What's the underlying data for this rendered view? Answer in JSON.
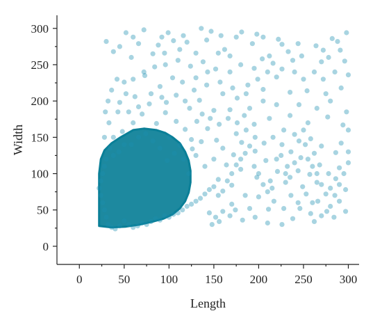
{
  "chart_data": {
    "type": "scatter",
    "title": "",
    "xlabel": "Length",
    "ylabel": "Width",
    "xlim": [
      -25,
      312
    ],
    "ylim": [
      -25,
      318
    ],
    "xticks": [
      0,
      50,
      100,
      150,
      200,
      250,
      300
    ],
    "yticks": [
      0,
      50,
      100,
      150,
      200,
      250,
      300
    ],
    "xtick_labels": [
      "0",
      "50",
      "100",
      "150",
      "200",
      "250",
      "300"
    ],
    "ytick_labels": [
      "0",
      "50",
      "100",
      "150",
      "200",
      "250",
      "300"
    ],
    "grid": false,
    "legend": "none",
    "marker_color": "#1a8fb0",
    "dense_cluster_color": "#0a7f97",
    "points": [
      [
        30,
        282
      ],
      [
        52,
        294
      ],
      [
        72,
        298
      ],
      [
        99,
        294
      ],
      [
        105,
        283
      ],
      [
        120,
        281
      ],
      [
        136,
        300
      ],
      [
        147,
        296
      ],
      [
        162,
        271
      ],
      [
        181,
        295
      ],
      [
        205,
        288
      ],
      [
        222,
        285
      ],
      [
        244,
        279
      ],
      [
        264,
        276
      ],
      [
        282,
        286
      ],
      [
        298,
        294
      ],
      [
        66,
        279
      ],
      [
        88,
        277
      ],
      [
        45,
        275
      ],
      [
        58,
        260
      ],
      [
        82,
        265
      ],
      [
        112,
        271
      ],
      [
        155,
        266
      ],
      [
        193,
        279
      ],
      [
        216,
        252
      ],
      [
        270,
        254
      ],
      [
        272,
        230
      ],
      [
        254,
        214
      ],
      [
        235,
        212
      ],
      [
        220,
        233
      ],
      [
        205,
        216
      ],
      [
        188,
        222
      ],
      [
        176,
        204
      ],
      [
        160,
        210
      ],
      [
        142,
        222
      ],
      [
        128,
        215
      ],
      [
        115,
        226
      ],
      [
        104,
        232
      ],
      [
        90,
        220
      ],
      [
        73,
        235
      ],
      [
        62,
        206
      ],
      [
        52,
        210
      ],
      [
        45,
        198
      ],
      [
        78,
        196
      ],
      [
        97,
        198
      ],
      [
        123,
        190
      ],
      [
        134,
        201
      ],
      [
        150,
        187
      ],
      [
        168,
        188
      ],
      [
        184,
        180
      ],
      [
        195,
        168
      ],
      [
        212,
        176
      ],
      [
        228,
        160
      ],
      [
        240,
        154
      ],
      [
        258,
        148
      ],
      [
        277,
        178
      ],
      [
        294,
        167
      ],
      [
        286,
        129
      ],
      [
        270,
        138
      ],
      [
        257,
        99
      ],
      [
        247,
        122
      ],
      [
        232,
        110
      ],
      [
        221,
        103
      ],
      [
        208,
        118
      ],
      [
        196,
        131
      ],
      [
        181,
        143
      ],
      [
        172,
        126
      ],
      [
        164,
        112
      ],
      [
        153,
        146
      ],
      [
        143,
        162
      ],
      [
        131,
        172
      ],
      [
        118,
        161
      ],
      [
        108,
        172
      ],
      [
        96,
        184
      ],
      [
        86,
        169
      ],
      [
        70,
        182
      ],
      [
        60,
        170
      ],
      [
        48,
        158
      ],
      [
        38,
        150
      ],
      [
        33,
        170
      ],
      [
        28,
        150
      ],
      [
        137,
        182
      ],
      [
        125,
        147
      ],
      [
        112,
        139
      ],
      [
        100,
        150
      ],
      [
        180,
        106
      ],
      [
        198,
        95
      ],
      [
        213,
        90
      ],
      [
        230,
        88
      ],
      [
        249,
        82
      ],
      [
        265,
        88
      ],
      [
        286,
        93
      ],
      [
        297,
        78
      ],
      [
        280,
        55
      ],
      [
        260,
        60
      ],
      [
        244,
        60
      ],
      [
        228,
        52
      ],
      [
        211,
        51
      ],
      [
        190,
        52
      ],
      [
        174,
        50
      ],
      [
        160,
        48
      ],
      [
        145,
        46
      ],
      [
        152,
        40
      ],
      [
        170,
        58
      ],
      [
        185,
        70
      ],
      [
        200,
        68
      ],
      [
        217,
        62
      ],
      [
        236,
        70
      ],
      [
        253,
        72
      ],
      [
        266,
        62
      ],
      [
        276,
        48
      ],
      [
        290,
        62
      ],
      [
        170,
        84
      ],
      [
        155,
        92
      ],
      [
        140,
        110
      ],
      [
        130,
        125
      ],
      [
        122,
        100
      ],
      [
        150,
        120
      ],
      [
        160,
        135
      ],
      [
        175,
        155
      ],
      [
        190,
        190
      ],
      [
        205,
        200
      ],
      [
        220,
        195
      ],
      [
        235,
        180
      ],
      [
        245,
        195
      ],
      [
        255,
        170
      ],
      [
        265,
        190
      ],
      [
        275,
        210
      ],
      [
        285,
        240
      ],
      [
        291,
        270
      ],
      [
        233,
        268
      ],
      [
        212,
        262
      ],
      [
        195,
        245
      ],
      [
        180,
        250
      ],
      [
        168,
        240
      ],
      [
        152,
        244
      ],
      [
        138,
        254
      ],
      [
        124,
        248
      ],
      [
        110,
        256
      ],
      [
        96,
        250
      ],
      [
        84,
        247
      ],
      [
        72,
        240
      ],
      [
        60,
        230
      ],
      [
        50,
        226
      ],
      [
        42,
        230
      ],
      [
        36,
        215
      ],
      [
        32,
        200
      ],
      [
        29,
        185
      ],
      [
        43,
        185
      ],
      [
        55,
        185
      ],
      [
        66,
        192
      ],
      [
        80,
        210
      ],
      [
        92,
        205
      ],
      [
        108,
        208
      ],
      [
        118,
        200
      ],
      [
        130,
        232
      ],
      [
        143,
        240
      ],
      [
        157,
        226
      ],
      [
        171,
        218
      ],
      [
        186,
        210
      ],
      [
        199,
        230
      ],
      [
        210,
        240
      ],
      [
        226,
        244
      ],
      [
        240,
        240
      ],
      [
        250,
        230
      ],
      [
        262,
        240
      ],
      [
        278,
        260
      ],
      [
        288,
        282
      ],
      [
        248,
        262
      ],
      [
        226,
        278
      ],
      [
        198,
        292
      ],
      [
        175,
        288
      ],
      [
        158,
        290
      ],
      [
        142,
        284
      ],
      [
        116,
        290
      ],
      [
        92,
        288
      ],
      [
        60,
        288
      ],
      [
        38,
        268
      ],
      [
        95,
        266
      ],
      [
        130,
        266
      ],
      [
        168,
        262
      ],
      [
        204,
        258
      ],
      [
        238,
        256
      ],
      [
        272,
        270
      ],
      [
        296,
        255
      ],
      [
        300,
        236
      ],
      [
        292,
        218
      ],
      [
        280,
        200
      ],
      [
        298,
        185
      ],
      [
        300,
        160
      ],
      [
        292,
        142
      ],
      [
        300,
        115
      ],
      [
        290,
        108
      ],
      [
        278,
        100
      ],
      [
        268,
        112
      ],
      [
        262,
        128
      ],
      [
        252,
        140
      ],
      [
        244,
        104
      ],
      [
        236,
        130
      ],
      [
        226,
        140
      ],
      [
        216,
        150
      ],
      [
        206,
        142
      ],
      [
        196,
        150
      ],
      [
        186,
        160
      ],
      [
        176,
        170
      ],
      [
        166,
        176
      ],
      [
        156,
        168
      ],
      [
        146,
        176
      ],
      [
        136,
        144
      ],
      [
        126,
        134
      ],
      [
        116,
        120
      ],
      [
        106,
        128
      ],
      [
        98,
        118
      ],
      [
        90,
        135
      ],
      [
        82,
        145
      ],
      [
        74,
        155
      ],
      [
        66,
        150
      ],
      [
        58,
        140
      ],
      [
        50,
        140
      ],
      [
        44,
        130
      ],
      [
        38,
        125
      ],
      [
        34,
        135
      ],
      [
        30,
        120
      ],
      [
        28,
        110
      ],
      [
        26,
        100
      ],
      [
        24,
        90
      ],
      [
        22,
        80
      ],
      [
        24,
        70
      ],
      [
        26,
        60
      ],
      [
        28,
        50
      ],
      [
        30,
        40
      ],
      [
        32,
        30
      ],
      [
        36,
        26
      ],
      [
        40,
        24
      ],
      [
        45,
        28
      ],
      [
        50,
        35
      ],
      [
        55,
        30
      ],
      [
        60,
        26
      ],
      [
        65,
        28
      ],
      [
        70,
        32
      ],
      [
        75,
        30
      ],
      [
        80,
        34
      ],
      [
        85,
        38
      ],
      [
        90,
        36
      ],
      [
        95,
        42
      ],
      [
        100,
        40
      ],
      [
        105,
        44
      ],
      [
        110,
        46
      ],
      [
        115,
        50
      ],
      [
        120,
        55
      ],
      [
        125,
        58
      ],
      [
        130,
        62
      ],
      [
        135,
        66
      ],
      [
        140,
        72
      ],
      [
        145,
        78
      ],
      [
        150,
        82
      ],
      [
        155,
        70
      ],
      [
        160,
        76
      ],
      [
        165,
        90
      ],
      [
        170,
        100
      ],
      [
        175,
        112
      ],
      [
        180,
        120
      ],
      [
        185,
        128
      ],
      [
        190,
        138
      ],
      [
        195,
        110
      ],
      [
        200,
        100
      ],
      [
        205,
        85
      ],
      [
        210,
        75
      ],
      [
        215,
        80
      ],
      [
        220,
        120
      ],
      [
        225,
        125
      ],
      [
        230,
        100
      ],
      [
        235,
        95
      ],
      [
        240,
        115
      ],
      [
        245,
        145
      ],
      [
        250,
        160
      ],
      [
        255,
        120
      ],
      [
        260,
        110
      ],
      [
        265,
        100
      ],
      [
        270,
        85
      ],
      [
        275,
        72
      ],
      [
        280,
        80
      ],
      [
        285,
        70
      ],
      [
        290,
        85
      ],
      [
        295,
        100
      ],
      [
        300,
        130
      ],
      [
        246,
        52
      ],
      [
        258,
        45
      ],
      [
        270,
        42
      ],
      [
        284,
        40
      ],
      [
        297,
        48
      ],
      [
        262,
        34
      ],
      [
        238,
        38
      ],
      [
        226,
        30
      ],
      [
        210,
        32
      ],
      [
        196,
        40
      ],
      [
        182,
        36
      ],
      [
        168,
        42
      ],
      [
        156,
        34
      ],
      [
        148,
        30
      ]
    ],
    "dense_cluster_outline": [
      [
        22,
        28
      ],
      [
        22,
        100
      ],
      [
        24,
        120
      ],
      [
        28,
        132
      ],
      [
        36,
        142
      ],
      [
        46,
        150
      ],
      [
        60,
        160
      ],
      [
        72,
        162
      ],
      [
        86,
        160
      ],
      [
        96,
        156
      ],
      [
        104,
        150
      ],
      [
        112,
        142
      ],
      [
        118,
        130
      ],
      [
        122,
        118
      ],
      [
        124,
        104
      ],
      [
        124,
        88
      ],
      [
        122,
        74
      ],
      [
        118,
        62
      ],
      [
        112,
        52
      ],
      [
        104,
        44
      ],
      [
        94,
        38
      ],
      [
        82,
        34
      ],
      [
        68,
        30
      ],
      [
        52,
        27
      ],
      [
        36,
        26
      ]
    ]
  }
}
